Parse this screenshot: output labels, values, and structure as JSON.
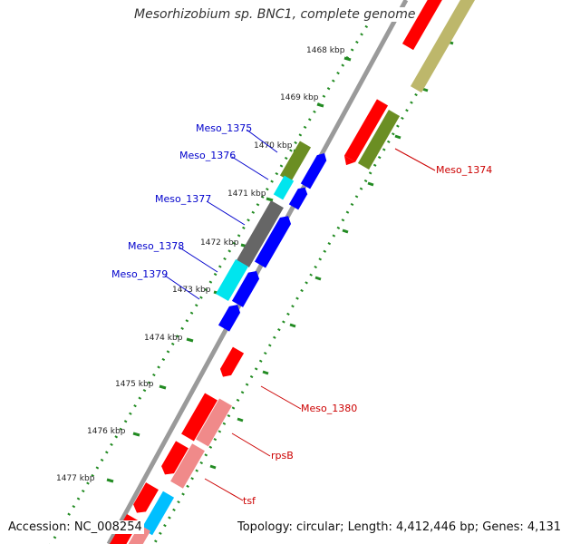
{
  "title": "Mesorhizobium sp. BNC1, complete genome",
  "accession": "Accession: NC_008254",
  "topology": "Topology: circular; Length: 4,412,446 bp; Genes: 4,131",
  "kbp_labels": [
    "1468 kbp",
    "1469 kbp",
    "1470 kbp",
    "1471 kbp",
    "1472 kbp",
    "1473 kbp",
    "1474 kbp",
    "1475 kbp",
    "1476 kbp",
    "1477 kbp"
  ],
  "genes_left": [
    "Meso_1375",
    "Meso_1376",
    "Meso_1377",
    "Meso_1378",
    "Meso_1379"
  ],
  "genes_right": [
    "Meso_1374",
    "Meso_1380",
    "rpsB",
    "tsf"
  ],
  "colors": {
    "left_label": "#0000cc",
    "right_label": "#cc0000",
    "red_gene": "#ff0000",
    "pink_gene": "#f08a8a",
    "blue_gene": "#0000ff",
    "cyan_gene": "#00e5ee",
    "olive_gene": "#6b8e23",
    "khaki_gene": "#bdb76b",
    "gray_gene": "#808080",
    "dots": "#228b22"
  }
}
